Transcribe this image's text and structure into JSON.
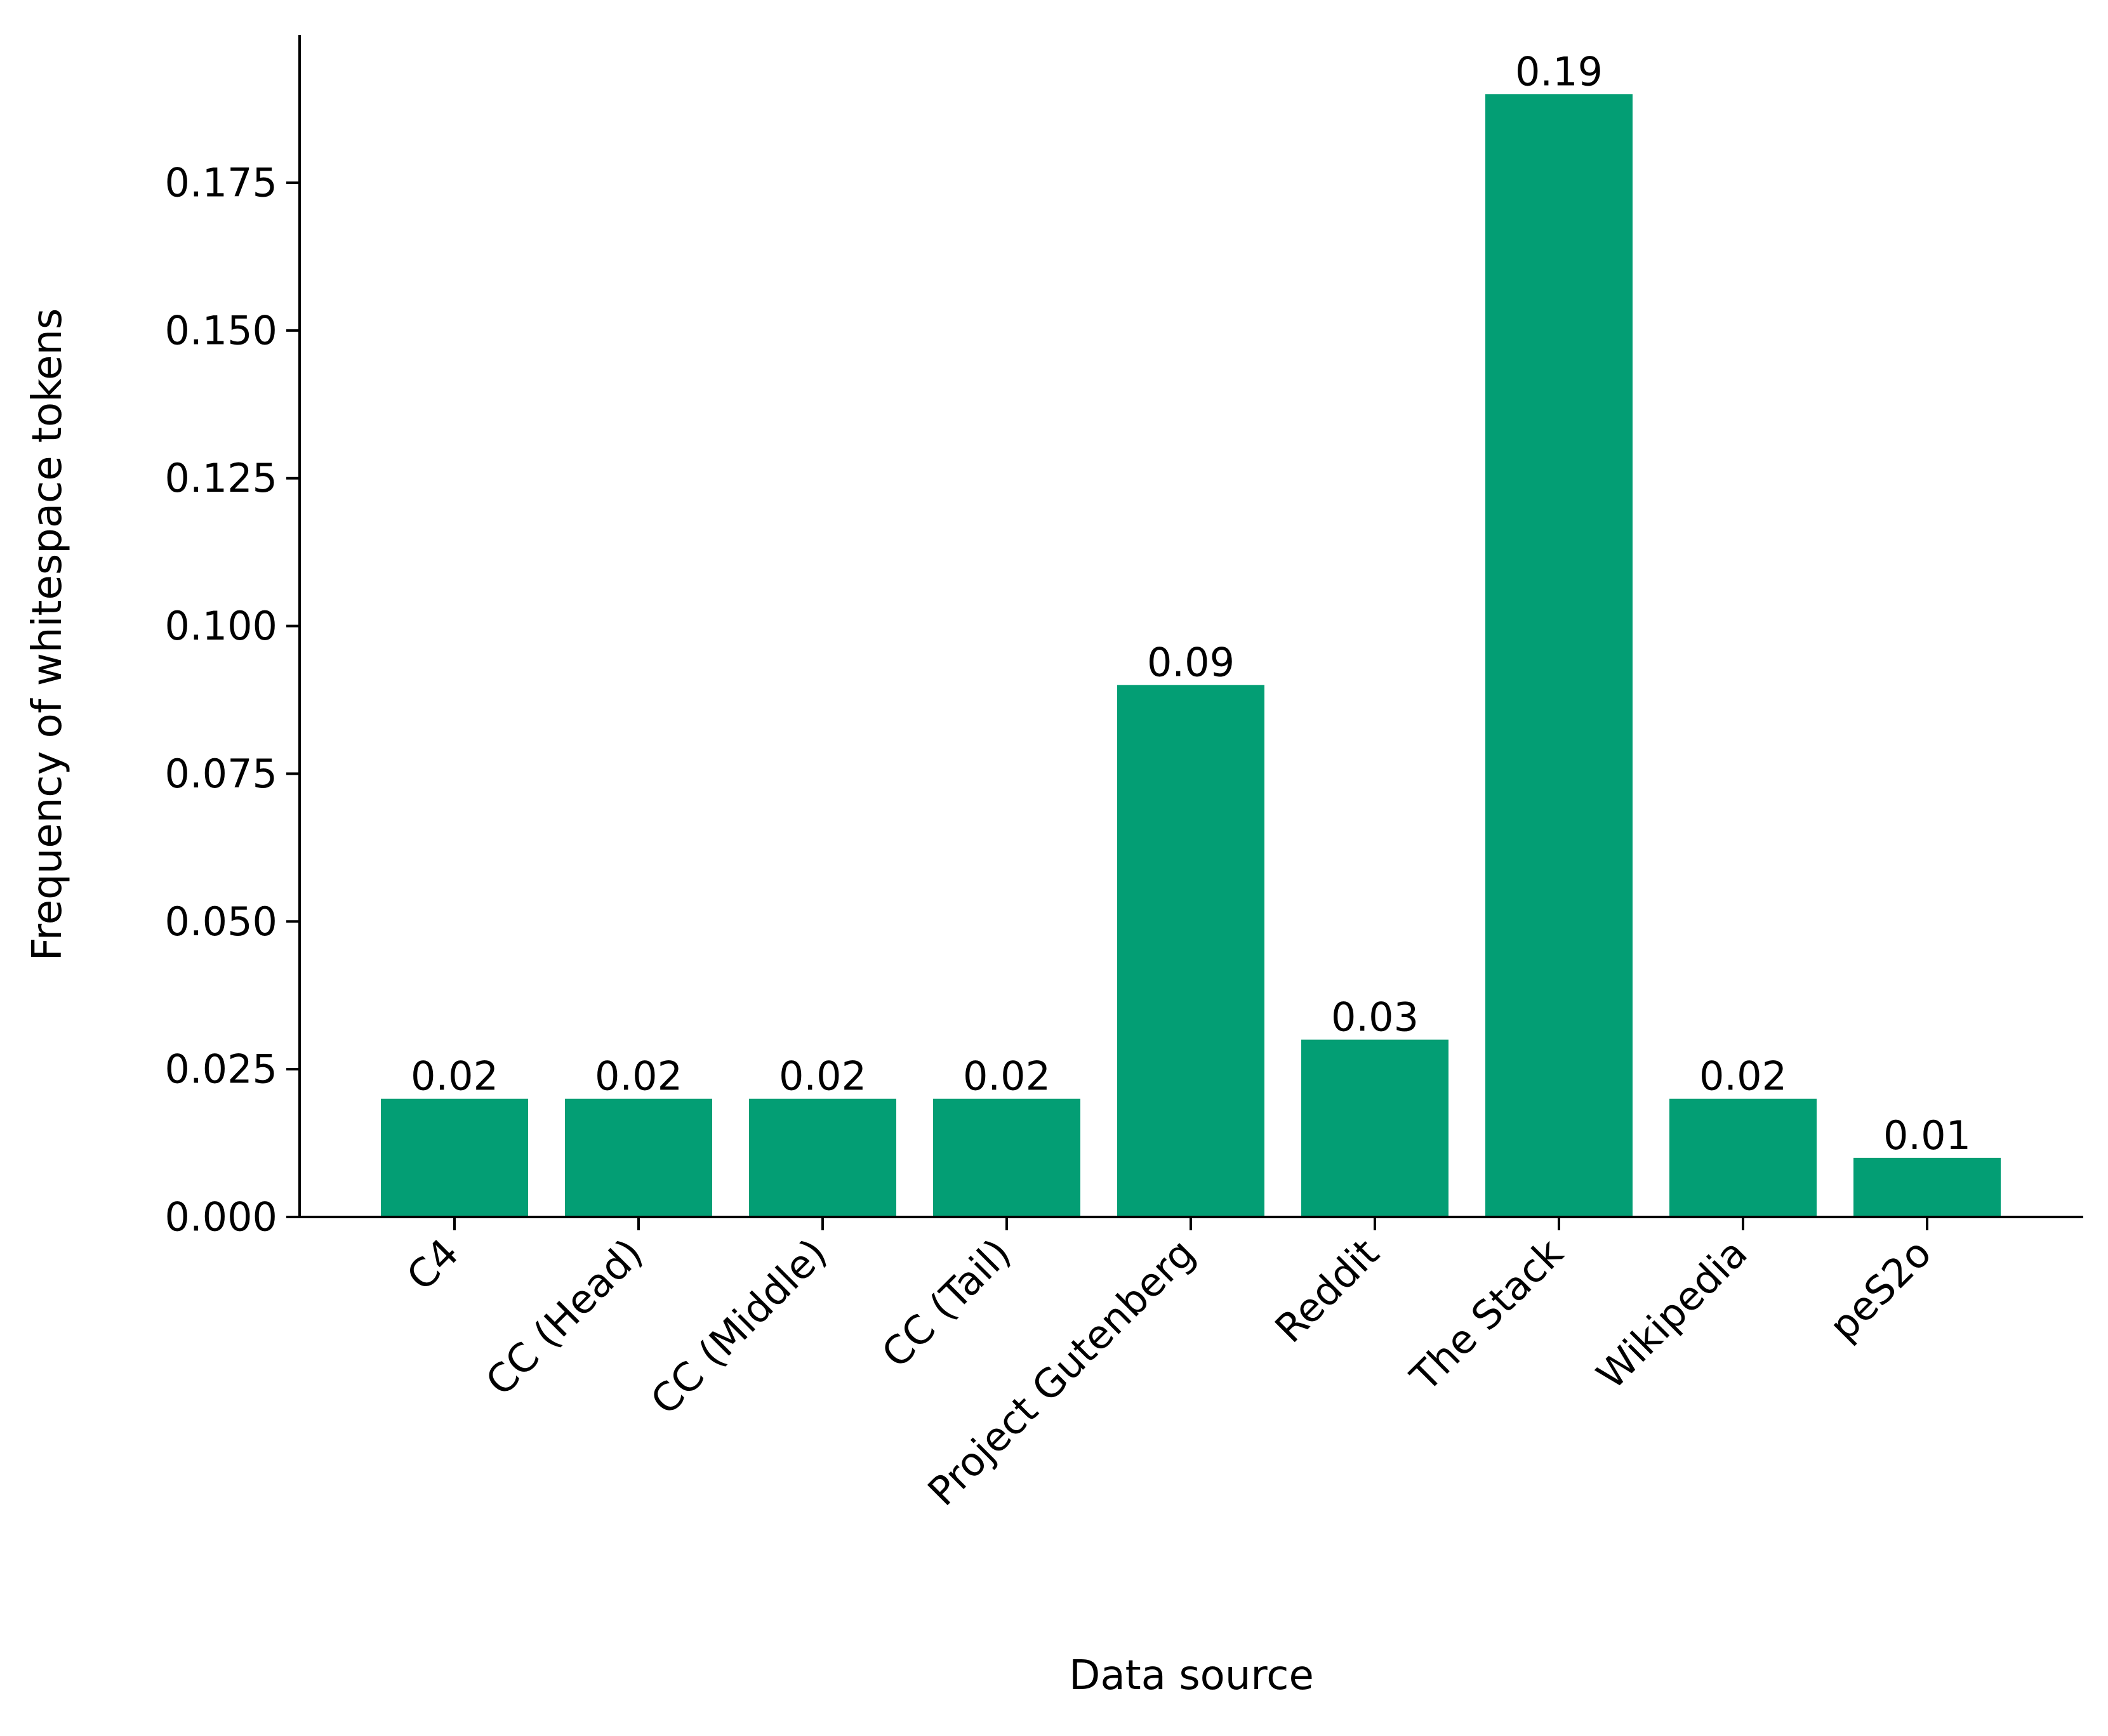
{
  "chart_data": {
    "type": "bar",
    "xlabel": "Data source",
    "ylabel": "Frequency of whitespace tokens",
    "categories": [
      "C4",
      "CC (Head)",
      "CC (Middle)",
      "CC (Tail)",
      "Project Gutenberg",
      "Reddit",
      "The Stack",
      "Wikipedia",
      "peS2o"
    ],
    "values": [
      0.02,
      0.02,
      0.02,
      0.02,
      0.09,
      0.03,
      0.19,
      0.02,
      0.01
    ],
    "value_labels": [
      "0.02",
      "0.02",
      "0.02",
      "0.02",
      "0.09",
      "0.03",
      "0.19",
      "0.02",
      "0.01"
    ],
    "yticks": [
      0.0,
      0.025,
      0.05,
      0.075,
      0.1,
      0.125,
      0.15,
      0.175
    ],
    "ytick_labels": [
      "0.000",
      "0.025",
      "0.050",
      "0.075",
      "0.100",
      "0.125",
      "0.150",
      "0.175"
    ],
    "ylim": [
      0,
      0.2
    ],
    "grid": false,
    "bar_color": "#039e74",
    "axis_color": "#000000",
    "spines": "left-bottom"
  }
}
